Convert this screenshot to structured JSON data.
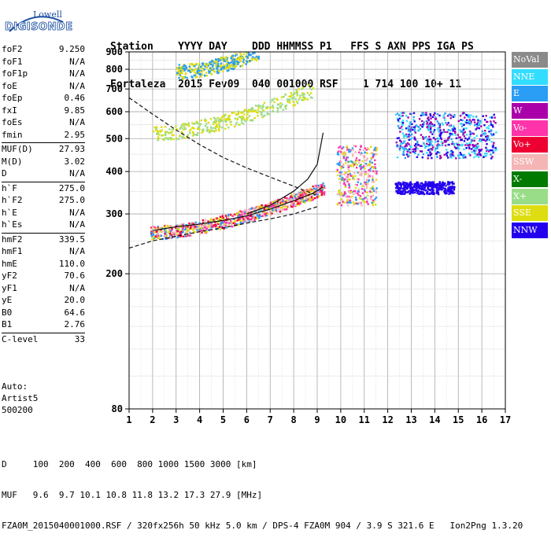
{
  "logo": {
    "line1": "Lowell",
    "line2": "DIGISONDE"
  },
  "header": {
    "labels": "Station    YYYY DAY    DDD HHMMSS P1   FFS S AXN PPS IGA PS",
    "values": "Fortaleza  2015 Fev09  040 001000 RSF    1 714 100 10+ 11"
  },
  "params": {
    "group1": [
      {
        "name": "foF2",
        "value": "9.250"
      },
      {
        "name": "foF1",
        "value": "N/A"
      },
      {
        "name": "foF1p",
        "value": "N/A"
      },
      {
        "name": "foE",
        "value": "N/A"
      },
      {
        "name": "foEp",
        "value": "0.46"
      },
      {
        "name": "fxI",
        "value": "9.85"
      },
      {
        "name": "foEs",
        "value": "N/A"
      },
      {
        "name": "fmin",
        "value": "2.95"
      }
    ],
    "group2": [
      {
        "name": "MUF(D)",
        "value": "27.93"
      },
      {
        "name": "M(D)",
        "value": "3.02"
      },
      {
        "name": "D",
        "value": "N/A"
      }
    ],
    "group3": [
      {
        "name": "h`F",
        "value": "275.0"
      },
      {
        "name": "h`F2",
        "value": "275.0"
      },
      {
        "name": "h`E",
        "value": "N/A"
      },
      {
        "name": "h`Es",
        "value": "N/A"
      }
    ],
    "group4": [
      {
        "name": "hmF2",
        "value": "339.5"
      },
      {
        "name": "hmF1",
        "value": "N/A"
      },
      {
        "name": "hmE",
        "value": "110.0"
      },
      {
        "name": "yF2",
        "value": "70.6"
      },
      {
        "name": "yF1",
        "value": "N/A"
      },
      {
        "name": "yE",
        "value": "20.0"
      },
      {
        "name": "B0",
        "value": "64.6"
      },
      {
        "name": "B1",
        "value": "2.76"
      }
    ],
    "group5": [
      {
        "name": "C-level",
        "value": "33"
      }
    ]
  },
  "auto": {
    "line1": "Auto:",
    "line2": "Artist5",
    "line3": "500200"
  },
  "legend": [
    {
      "label": "NoVal",
      "color": "#8a8a8a"
    },
    {
      "label": "NNE",
      "color": "#33ddff"
    },
    {
      "label": "E",
      "color": "#2a9df4"
    },
    {
      "label": "W",
      "color": "#aa00aa"
    },
    {
      "label": "Vo-",
      "color": "#ff33aa"
    },
    {
      "label": "Vo+",
      "color": "#ee0033"
    },
    {
      "label": "SSW",
      "color": "#f5b5b5"
    },
    {
      "label": "X-",
      "color": "#007a00"
    },
    {
      "label": "X+",
      "color": "#99dd88"
    },
    {
      "label": "SSE",
      "color": "#dddd11"
    },
    {
      "label": "NNW",
      "color": "#2200ee"
    }
  ],
  "footer": {
    "d_row": "D     100  200  400  600  800 1000 1500 3000 [km]",
    "muf_row": "MUF   9.6  9.7 10.1 10.8 11.8 13.2 17.3 27.9 [MHz]",
    "file_row": "FZA0M_2015040001000.RSF / 320fx256h 50 kHz 5.0 km / DPS-4 FZA0M 904 / 3.9 S 321.6 E   Ion2Png 1.3.20"
  },
  "chart_data": {
    "type": "scatter",
    "title": "",
    "xlabel": "",
    "ylabel": "",
    "xlim": [
      1,
      17
    ],
    "ylim": [
      80,
      900
    ],
    "y_scale": "log",
    "grid": true,
    "x_ticks": [
      "1",
      "2",
      "3",
      "4",
      "5",
      "6",
      "7",
      "8",
      "9",
      "10",
      "11",
      "12",
      "13",
      "14",
      "15",
      "16",
      "17"
    ],
    "y_ticks": [
      "80",
      "200",
      "300",
      "400",
      "500",
      "600",
      "700",
      "800",
      "900"
    ],
    "trace_clusters": [
      {
        "name": "main-F2-trace",
        "x": [
          1.9,
          9.3
        ],
        "y": [
          265,
          360
        ],
        "colors": [
          "#ff33aa",
          "#ee0033",
          "#2a9df4",
          "#dddd11",
          "#f5b5b5"
        ]
      },
      {
        "name": "second-hop",
        "x": [
          2,
          8.8
        ],
        "y": [
          520,
          700
        ],
        "colors": [
          "#dddd11",
          "#99dd88"
        ]
      },
      {
        "name": "third-hop",
        "x": [
          3,
          6.5
        ],
        "y": [
          790,
          900
        ],
        "colors": [
          "#dddd11",
          "#2a9df4"
        ]
      },
      {
        "name": "oblique-east",
        "x": [
          12.3,
          16.6
        ],
        "y": [
          440,
          600
        ],
        "colors": [
          "#2200ee",
          "#2a9df4",
          "#33ddff",
          "#aa00aa"
        ]
      },
      {
        "name": "oblique-low",
        "x": [
          12.3,
          14.8
        ],
        "y": [
          345,
          375
        ],
        "colors": [
          "#2200ee"
        ]
      },
      {
        "name": "spread-F",
        "x": [
          9.8,
          11.5
        ],
        "y": [
          320,
          480
        ],
        "colors": [
          "#dddd11",
          "#f5b5b5",
          "#2a9df4",
          "#ff33aa"
        ]
      }
    ],
    "curves": [
      {
        "name": "profile-solid",
        "style": "solid",
        "x": [
          2.0,
          3.0,
          4.0,
          5.0,
          6.0,
          7.0,
          8.0,
          8.8,
          9.25
        ],
        "y": [
          268,
          275,
          280,
          287,
          296,
          310,
          328,
          345,
          360
        ]
      },
      {
        "name": "profile-upper",
        "style": "solid",
        "x": [
          6.0,
          7.0,
          8.0,
          8.6,
          9.0,
          9.25
        ],
        "y": [
          300,
          318,
          350,
          380,
          420,
          520
        ]
      },
      {
        "name": "dashed-decay",
        "style": "dashed",
        "x": [
          1.0,
          2.0,
          3.0,
          4.0,
          5.0,
          6.0,
          7.0,
          8.0,
          9.0
        ],
        "y": [
          660,
          590,
          530,
          480,
          440,
          410,
          385,
          362,
          340
        ]
      },
      {
        "name": "dashed-lower",
        "style": "dashed",
        "x": [
          1.0,
          2.0,
          3.0,
          4.0,
          5.0,
          6.0,
          7.0,
          8.0,
          9.0
        ],
        "y": [
          238,
          250,
          258,
          266,
          273,
          282,
          290,
          300,
          315
        ]
      }
    ]
  }
}
